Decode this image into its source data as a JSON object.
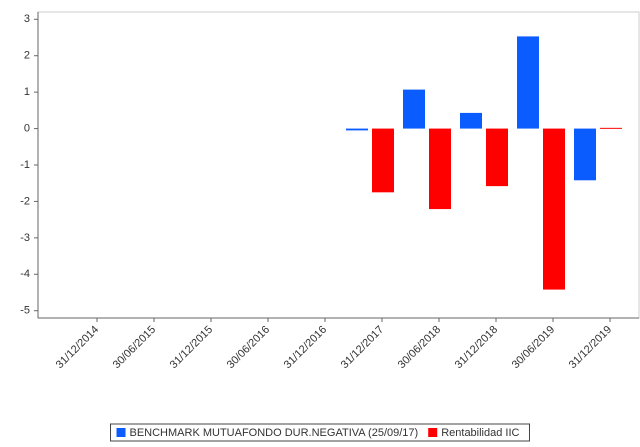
{
  "chart_data": {
    "type": "bar",
    "categories": [
      "31/12/2014",
      "30/06/2015",
      "31/12/2015",
      "30/06/2016",
      "31/12/2016",
      "31/12/2017",
      "30/06/2018",
      "31/12/2018",
      "30/06/2019",
      "31/12/2019"
    ],
    "series": [
      {
        "name": "BENCHMARK MUTUAFONDO DUR.NEGATIVA (25/09/17)",
        "color": "#0a5cff",
        "values": [
          null,
          null,
          null,
          null,
          null,
          -0.05,
          1.07,
          0.43,
          2.53,
          -1.42
        ]
      },
      {
        "name": "Rentabilidad IIC",
        "color": "#ff0000",
        "values": [
          null,
          null,
          null,
          null,
          null,
          -1.75,
          -2.21,
          -1.58,
          -4.42,
          0.02
        ]
      }
    ],
    "ylim": [
      -5.2,
      3.2
    ],
    "yticks": [
      -5,
      -4,
      -3,
      -2,
      -1,
      0,
      1,
      2,
      3
    ],
    "grid": false
  }
}
